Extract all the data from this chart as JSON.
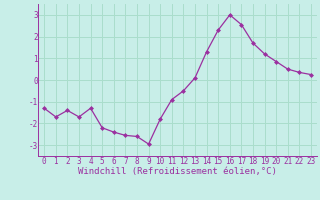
{
  "x": [
    0,
    1,
    2,
    3,
    4,
    5,
    6,
    7,
    8,
    9,
    10,
    11,
    12,
    13,
    14,
    15,
    16,
    17,
    18,
    19,
    20,
    21,
    22,
    23
  ],
  "y": [
    -1.3,
    -1.7,
    -1.4,
    -1.7,
    -1.3,
    -2.2,
    -2.4,
    -2.55,
    -2.6,
    -2.95,
    -1.8,
    -0.9,
    -0.5,
    0.1,
    1.3,
    2.3,
    3.0,
    2.55,
    1.7,
    1.2,
    0.85,
    0.5,
    0.35,
    0.25
  ],
  "line_color": "#9b30a0",
  "marker": "D",
  "marker_size": 2,
  "background_color": "#c8eee8",
  "grid_color": "#aaddcc",
  "xlabel": "Windchill (Refroidissement éolien,°C)",
  "xlabel_fontsize": 6.5,
  "tick_color": "#9b30a0",
  "tick_fontsize": 5.5,
  "ylim": [
    -3.5,
    3.5
  ],
  "xlim": [
    -0.5,
    23.5
  ],
  "yticks": [
    -3,
    -2,
    -1,
    0,
    1,
    2,
    3
  ],
  "xticks": [
    0,
    1,
    2,
    3,
    4,
    5,
    6,
    7,
    8,
    9,
    10,
    11,
    12,
    13,
    14,
    15,
    16,
    17,
    18,
    19,
    20,
    21,
    22,
    23
  ],
  "xtick_labels": [
    "0",
    "1",
    "2",
    "3",
    "4",
    "5",
    "6",
    "7",
    "8",
    "9",
    "10",
    "11",
    "12",
    "13",
    "14",
    "15",
    "16",
    "17",
    "18",
    "19",
    "20",
    "21",
    "22",
    "23"
  ]
}
